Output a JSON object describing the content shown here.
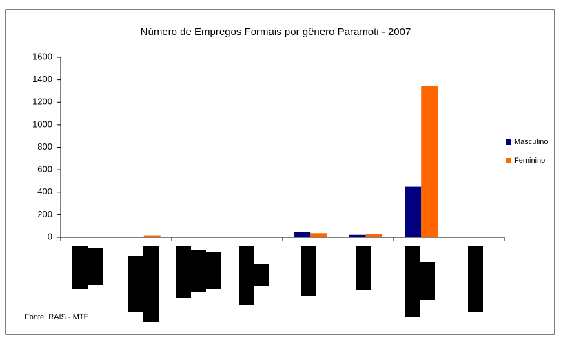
{
  "chart_data": {
    "type": "bar",
    "title": "Número de Empregos Formais por gênero Paramoti - 2007",
    "categories": [
      null,
      null,
      null,
      null,
      null,
      null,
      null,
      null
    ],
    "series": [
      {
        "name": "Masculino",
        "color": "#000080",
        "values": [
          0,
          0,
          0,
          0,
          45,
          20,
          450,
          0
        ]
      },
      {
        "name": "Feminino",
        "color": "#ff6600",
        "values": [
          0,
          15,
          0,
          0,
          35,
          30,
          1345,
          0
        ]
      }
    ],
    "ylim": [
      0,
      1600
    ],
    "yticks": [
      0,
      200,
      400,
      600,
      800,
      1000,
      1200,
      1400,
      1600
    ],
    "grid": false,
    "legend": "right",
    "source": "Fonte: RAIS - MTE"
  }
}
